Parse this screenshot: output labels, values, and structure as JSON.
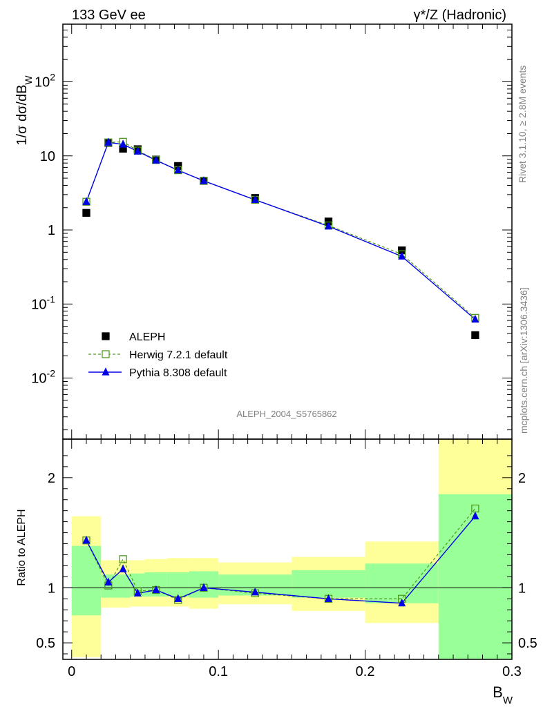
{
  "header": {
    "left": "133 GeV ee",
    "right": "γ*/Z (Hadronic)"
  },
  "side_text": {
    "top": "Rivet 3.1.10, ≥ 2.8M events",
    "bottom": "mcplots.cern.ch [arXiv:1306.3436]"
  },
  "analysis_id": "ALEPH_2004_S5765862",
  "chart_data": [
    {
      "type": "scatter",
      "panel": "main",
      "ylabel": "1/σ dσ/dB_W",
      "yscale": "log",
      "ylim": [
        0.0015,
        600
      ],
      "xlim": [
        -0.006,
        0.3
      ],
      "legend_position": "bottom-left",
      "grid": false,
      "x": [
        0.01,
        0.025,
        0.035,
        0.045,
        0.0575,
        0.0725,
        0.09,
        0.125,
        0.175,
        0.225,
        0.275
      ],
      "x_edges": [
        0.0,
        0.02,
        0.03,
        0.04,
        0.05,
        0.065,
        0.08,
        0.1,
        0.15,
        0.2,
        0.25,
        0.3
      ],
      "y_tick_labels": [
        "10^-2",
        "10^-1",
        "1",
        "10",
        "10^2"
      ],
      "series": [
        {
          "name": "ALEPH",
          "color": "#000000",
          "marker": "filled-square",
          "values": [
            1.7,
            15.0,
            12.5,
            12.3,
            8.9,
            7.3,
            4.6,
            2.7,
            1.3,
            0.53,
            0.038
          ]
        },
        {
          "name": "Herwig 7.2.1 default",
          "color": "#4f9a1e",
          "marker": "open-square",
          "line": "dashed",
          "values": [
            2.4,
            15.2,
            15.5,
            11.8,
            8.8,
            6.4,
            4.6,
            2.55,
            1.15,
            0.47,
            0.065
          ]
        },
        {
          "name": "Pythia 8.308 default",
          "color": "#0000e6",
          "marker": "filled-triangle",
          "line": "solid",
          "values": [
            2.4,
            15.2,
            14.3,
            11.5,
            8.7,
            6.4,
            4.6,
            2.55,
            1.12,
            0.44,
            0.062
          ]
        }
      ]
    },
    {
      "type": "line",
      "panel": "ratio",
      "ylabel": "Ratio to ALEPH",
      "xlabel": "B_W",
      "ylim": [
        0.35,
        2.35
      ],
      "y_tick_labels": [
        "0.5",
        "1",
        "2"
      ],
      "x_tick_labels": [
        "0",
        "0.1",
        "0.2",
        "0.3"
      ],
      "band_yellow_colour": "#ffff99",
      "band_green_colour": "#99ff99",
      "bands": [
        {
          "x0": 0.0,
          "x1": 0.02,
          "yellow": [
            0.37,
            1.65
          ],
          "green": [
            0.75,
            1.38
          ]
        },
        {
          "x0": 0.02,
          "x1": 0.03,
          "yellow": [
            0.82,
            1.25
          ],
          "green": [
            0.91,
            1.12
          ]
        },
        {
          "x0": 0.03,
          "x1": 0.04,
          "yellow": [
            0.82,
            1.25
          ],
          "green": [
            0.91,
            1.12
          ]
        },
        {
          "x0": 0.04,
          "x1": 0.05,
          "yellow": [
            0.83,
            1.25
          ],
          "green": [
            0.92,
            1.13
          ]
        },
        {
          "x0": 0.05,
          "x1": 0.065,
          "yellow": [
            0.83,
            1.26
          ],
          "green": [
            0.92,
            1.14
          ]
        },
        {
          "x0": 0.065,
          "x1": 0.08,
          "yellow": [
            0.83,
            1.27
          ],
          "green": [
            0.92,
            1.14
          ]
        },
        {
          "x0": 0.08,
          "x1": 0.1,
          "yellow": [
            0.81,
            1.27
          ],
          "green": [
            0.91,
            1.15
          ]
        },
        {
          "x0": 0.1,
          "x1": 0.15,
          "yellow": [
            0.85,
            1.23
          ],
          "green": [
            0.93,
            1.12
          ]
        },
        {
          "x0": 0.15,
          "x1": 0.2,
          "yellow": [
            0.79,
            1.28
          ],
          "green": [
            0.91,
            1.16
          ]
        },
        {
          "x0": 0.2,
          "x1": 0.25,
          "yellow": [
            0.68,
            1.42
          ],
          "green": [
            0.86,
            1.22
          ]
        },
        {
          "x0": 0.25,
          "x1": 0.3,
          "yellow": [
            0.35,
            2.35
          ],
          "green": [
            0.35,
            1.85
          ]
        }
      ],
      "series": [
        {
          "name": "Herwig 7.2.1 default",
          "color": "#4f9a1e",
          "values": [
            1.43,
            1.02,
            1.26,
            0.97,
            0.98,
            0.89,
            1.0,
            0.95,
            0.9,
            0.9,
            1.72
          ]
        },
        {
          "name": "Pythia 8.308 default",
          "color": "#0000e6",
          "values": [
            1.43,
            1.05,
            1.17,
            0.95,
            0.98,
            0.9,
            1.0,
            0.96,
            0.9,
            0.86,
            1.65
          ]
        }
      ]
    }
  ]
}
